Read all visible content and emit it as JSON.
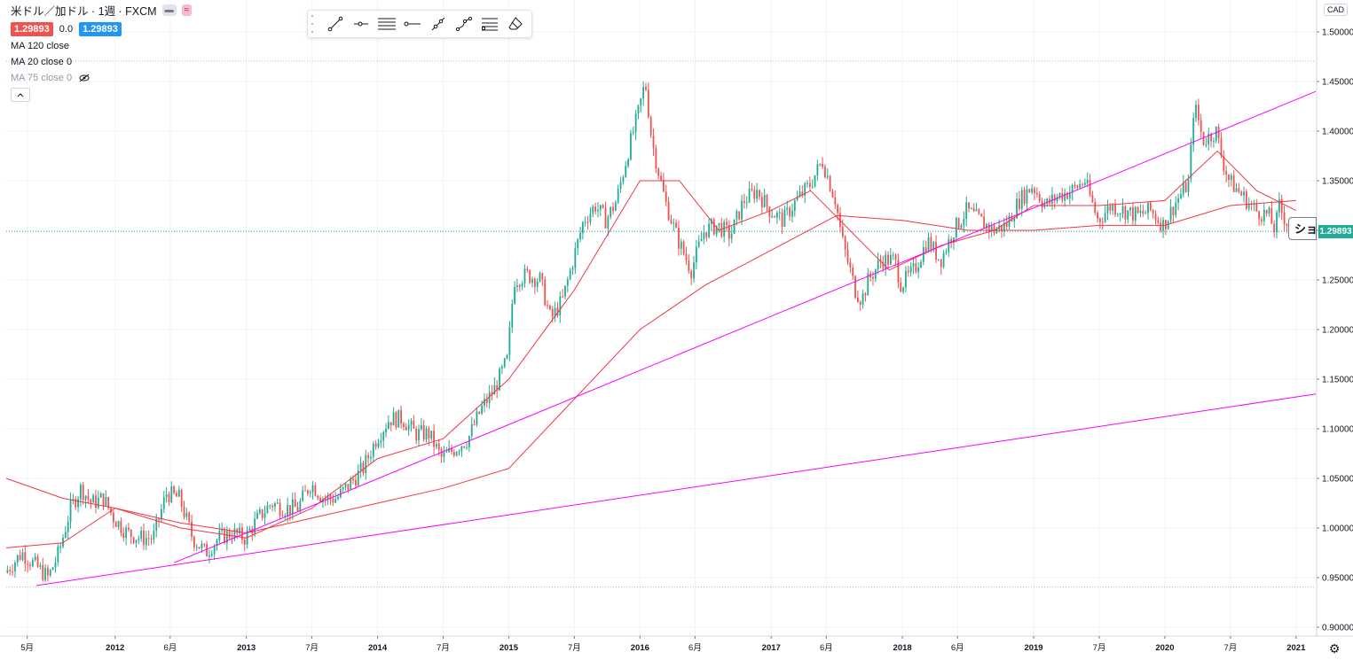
{
  "header": {
    "title": "米ドル／加ドル · 1週 · FXCM",
    "bid": "1.29893",
    "change": "0.0",
    "ask": "1.29893",
    "icons": [
      "hide-bars-icon",
      "compare-icon"
    ]
  },
  "indicators": [
    {
      "label": "MA 120 close",
      "visible": true
    },
    {
      "label": "MA 20 close 0",
      "visible": true
    },
    {
      "label": "MA 75 close 0",
      "visible": false
    }
  ],
  "toolbar": {
    "items": [
      "trend-line-icon",
      "horizontal-ray-icon",
      "parallel-channel-icon",
      "horizontal-line-icon",
      "extended-line-icon",
      "path-icon",
      "fib-retracement-icon",
      "eraser-icon"
    ]
  },
  "currency": "CAD",
  "last_price_label": "1.29893",
  "short_tag": "ショ",
  "chart_data": {
    "type": "candlestick",
    "symbol": "USDCAD",
    "timeframe": "1W",
    "y_axis": {
      "ticks": [
        "1.50000",
        "1.45000",
        "1.40000",
        "1.35000",
        "1.30000",
        "1.25000",
        "1.20000",
        "1.15000",
        "1.10000",
        "1.05000",
        "1.00000",
        "0.95000",
        "0.90000"
      ],
      "range": [
        0.89,
        1.515
      ]
    },
    "x_axis": {
      "range": [
        2011.17,
        2021.15
      ],
      "ticks": [
        {
          "label": "5月",
          "t": 2011.33
        },
        {
          "label": "2012",
          "t": 2012.0
        },
        {
          "label": "6月",
          "t": 2012.42
        },
        {
          "label": "2013",
          "t": 2013.0
        },
        {
          "label": "7月",
          "t": 2013.5
        },
        {
          "label": "2014",
          "t": 2014.0
        },
        {
          "label": "7月",
          "t": 2014.5
        },
        {
          "label": "2015",
          "t": 2015.0
        },
        {
          "label": "7月",
          "t": 2015.5
        },
        {
          "label": "2016",
          "t": 2016.0
        },
        {
          "label": "6月",
          "t": 2016.42
        },
        {
          "label": "2017",
          "t": 2017.0
        },
        {
          "label": "6月",
          "t": 2017.42
        },
        {
          "label": "2018",
          "t": 2018.0
        },
        {
          "label": "6月",
          "t": 2018.42
        },
        {
          "label": "2019",
          "t": 2019.0
        },
        {
          "label": "7月",
          "t": 2019.5
        },
        {
          "label": "2020",
          "t": 2020.0
        },
        {
          "label": "7月",
          "t": 2020.5
        },
        {
          "label": "2021",
          "t": 2021.0
        }
      ]
    },
    "price_path": [
      [
        2011.17,
        0.955
      ],
      [
        2011.3,
        0.975
      ],
      [
        2011.42,
        0.96
      ],
      [
        2011.5,
        0.95
      ],
      [
        2011.58,
        0.975
      ],
      [
        2011.67,
        1.02
      ],
      [
        2011.75,
        1.04
      ],
      [
        2011.83,
        1.025
      ],
      [
        2011.92,
        1.03
      ],
      [
        2012.0,
        1.01
      ],
      [
        2012.1,
        0.995
      ],
      [
        2012.2,
        0.99
      ],
      [
        2012.3,
        0.99
      ],
      [
        2012.4,
        1.035
      ],
      [
        2012.5,
        1.03
      ],
      [
        2012.6,
        0.99
      ],
      [
        2012.7,
        0.975
      ],
      [
        2012.8,
        0.99
      ],
      [
        2012.9,
        0.995
      ],
      [
        2013.0,
        0.99
      ],
      [
        2013.1,
        1.01
      ],
      [
        2013.2,
        1.025
      ],
      [
        2013.3,
        1.02
      ],
      [
        2013.4,
        1.02
      ],
      [
        2013.5,
        1.045
      ],
      [
        2013.6,
        1.03
      ],
      [
        2013.7,
        1.03
      ],
      [
        2013.8,
        1.045
      ],
      [
        2013.9,
        1.06
      ],
      [
        2014.0,
        1.09
      ],
      [
        2014.1,
        1.11
      ],
      [
        2014.2,
        1.11
      ],
      [
        2014.3,
        1.095
      ],
      [
        2014.4,
        1.095
      ],
      [
        2014.5,
        1.07
      ],
      [
        2014.6,
        1.08
      ],
      [
        2014.7,
        1.09
      ],
      [
        2014.8,
        1.12
      ],
      [
        2014.9,
        1.14
      ],
      [
        2015.0,
        1.17
      ],
      [
        2015.05,
        1.25
      ],
      [
        2015.15,
        1.255
      ],
      [
        2015.25,
        1.25
      ],
      [
        2015.33,
        1.21
      ],
      [
        2015.42,
        1.23
      ],
      [
        2015.5,
        1.27
      ],
      [
        2015.58,
        1.31
      ],
      [
        2015.67,
        1.325
      ],
      [
        2015.75,
        1.31
      ],
      [
        2015.83,
        1.33
      ],
      [
        2015.92,
        1.38
      ],
      [
        2016.0,
        1.42
      ],
      [
        2016.05,
        1.45
      ],
      [
        2016.1,
        1.39
      ],
      [
        2016.2,
        1.33
      ],
      [
        2016.3,
        1.29
      ],
      [
        2016.4,
        1.26
      ],
      [
        2016.5,
        1.3
      ],
      [
        2016.6,
        1.305
      ],
      [
        2016.7,
        1.295
      ],
      [
        2016.8,
        1.33
      ],
      [
        2016.9,
        1.34
      ],
      [
        2017.0,
        1.32
      ],
      [
        2017.1,
        1.31
      ],
      [
        2017.2,
        1.33
      ],
      [
        2017.3,
        1.345
      ],
      [
        2017.4,
        1.37
      ],
      [
        2017.5,
        1.33
      ],
      [
        2017.55,
        1.29
      ],
      [
        2017.65,
        1.24
      ],
      [
        2017.7,
        1.23
      ],
      [
        2017.75,
        1.25
      ],
      [
        2017.85,
        1.27
      ],
      [
        2017.95,
        1.27
      ],
      [
        2018.0,
        1.245
      ],
      [
        2018.1,
        1.26
      ],
      [
        2018.2,
        1.29
      ],
      [
        2018.3,
        1.27
      ],
      [
        2018.4,
        1.3
      ],
      [
        2018.5,
        1.32
      ],
      [
        2018.6,
        1.31
      ],
      [
        2018.7,
        1.3
      ],
      [
        2018.8,
        1.305
      ],
      [
        2018.9,
        1.33
      ],
      [
        2019.0,
        1.345
      ],
      [
        2019.1,
        1.325
      ],
      [
        2019.2,
        1.335
      ],
      [
        2019.3,
        1.34
      ],
      [
        2019.4,
        1.35
      ],
      [
        2019.5,
        1.31
      ],
      [
        2019.6,
        1.325
      ],
      [
        2019.7,
        1.32
      ],
      [
        2019.8,
        1.315
      ],
      [
        2019.9,
        1.32
      ],
      [
        2020.0,
        1.305
      ],
      [
        2020.1,
        1.33
      ],
      [
        2020.2,
        1.35
      ],
      [
        2020.22,
        1.42
      ],
      [
        2020.25,
        1.42
      ],
      [
        2020.3,
        1.39
      ],
      [
        2020.4,
        1.4
      ],
      [
        2020.45,
        1.37
      ],
      [
        2020.5,
        1.35
      ],
      [
        2020.6,
        1.335
      ],
      [
        2020.7,
        1.32
      ],
      [
        2020.8,
        1.315
      ],
      [
        2020.85,
        1.3
      ],
      [
        2020.88,
        1.325
      ],
      [
        2020.93,
        1.31
      ],
      [
        2021.0,
        1.298
      ]
    ],
    "series": [
      {
        "name": "MA 20 close",
        "points": [
          [
            2011.17,
            0.98
          ],
          [
            2011.6,
            0.985
          ],
          [
            2012.0,
            1.02
          ],
          [
            2012.5,
            1.0
          ],
          [
            2013.0,
            0.99
          ],
          [
            2013.5,
            1.02
          ],
          [
            2014.0,
            1.07
          ],
          [
            2014.5,
            1.09
          ],
          [
            2015.0,
            1.15
          ],
          [
            2015.5,
            1.24
          ],
          [
            2016.0,
            1.35
          ],
          [
            2016.3,
            1.35
          ],
          [
            2016.6,
            1.3
          ],
          [
            2017.0,
            1.32
          ],
          [
            2017.3,
            1.34
          ],
          [
            2017.6,
            1.3
          ],
          [
            2017.9,
            1.26
          ],
          [
            2018.3,
            1.285
          ],
          [
            2018.7,
            1.3
          ],
          [
            2019.0,
            1.325
          ],
          [
            2019.5,
            1.325
          ],
          [
            2020.0,
            1.33
          ],
          [
            2020.4,
            1.38
          ],
          [
            2020.7,
            1.34
          ],
          [
            2021.0,
            1.32
          ]
        ]
      },
      {
        "name": "MA 120 close",
        "points": [
          [
            2011.17,
            1.05
          ],
          [
            2011.6,
            1.03
          ],
          [
            2012.0,
            1.02
          ],
          [
            2012.5,
            1.005
          ],
          [
            2013.0,
            0.995
          ],
          [
            2013.5,
            1.01
          ],
          [
            2014.0,
            1.025
          ],
          [
            2014.5,
            1.04
          ],
          [
            2015.0,
            1.06
          ],
          [
            2015.5,
            1.13
          ],
          [
            2016.0,
            1.2
          ],
          [
            2016.5,
            1.245
          ],
          [
            2017.0,
            1.28
          ],
          [
            2017.5,
            1.315
          ],
          [
            2018.0,
            1.31
          ],
          [
            2018.5,
            1.3
          ],
          [
            2019.0,
            1.3
          ],
          [
            2019.5,
            1.305
          ],
          [
            2020.0,
            1.305
          ],
          [
            2020.5,
            1.325
          ],
          [
            2021.0,
            1.33
          ]
        ]
      }
    ],
    "trendlines": [
      {
        "name": "upper",
        "from": [
          2012.45,
          0.965
        ],
        "to": [
          2021.15,
          1.44
        ]
      },
      {
        "name": "lower",
        "from": [
          2011.4,
          0.942
        ],
        "to": [
          2021.15,
          1.135
        ]
      }
    ],
    "h_levels": [
      1.4705,
      0.9405
    ],
    "last_price": 1.29893,
    "colors": {
      "up": "#22ab94",
      "down": "#ef5350",
      "ma20": "#f23645",
      "ma120": "#158873",
      "trend": "#ff00ff",
      "grid": "#f0f3fa",
      "level": "#b2b5be",
      "last": "#22ab94"
    }
  }
}
